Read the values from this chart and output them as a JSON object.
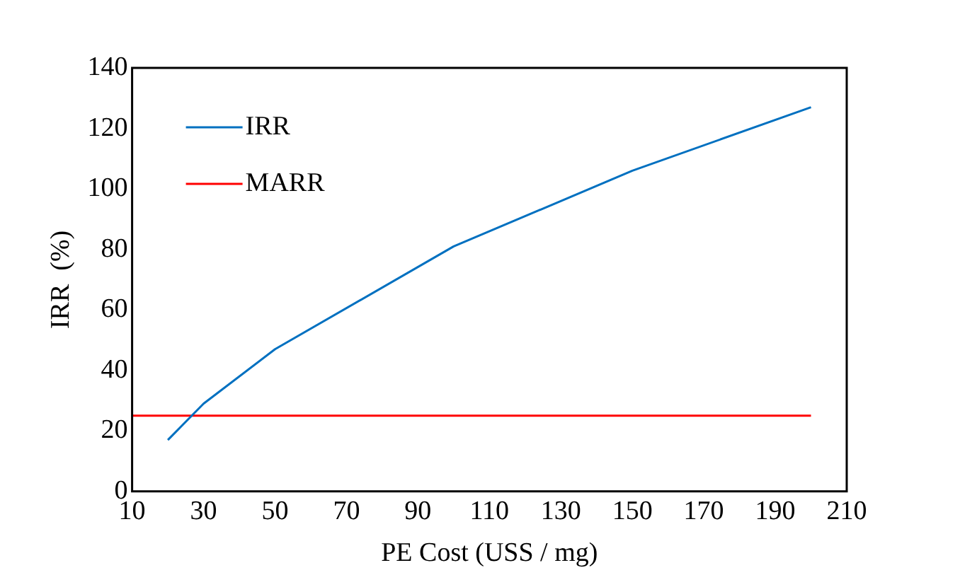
{
  "chart_data": {
    "type": "line",
    "xlabel": "PE Cost (USS / mg)",
    "ylabel": "IRR  (%)",
    "series": [
      {
        "name": "IRR",
        "color": "#0070c0",
        "x": [
          20,
          30,
          50,
          100,
          150,
          200
        ],
        "values": [
          17,
          29,
          47,
          81,
          106,
          127
        ]
      },
      {
        "name": "MARR",
        "color": "#ff0000",
        "x": [
          10,
          200
        ],
        "values": [
          25,
          25
        ]
      }
    ],
    "xlim": [
      10,
      210
    ],
    "xticks": [
      10,
      30,
      50,
      70,
      90,
      110,
      130,
      150,
      170,
      190,
      210
    ],
    "ylim": [
      0,
      140
    ],
    "yticks": [
      0,
      20,
      40,
      60,
      80,
      100,
      120,
      140
    ],
    "grid": false,
    "legend": "top left",
    "marker": "none",
    "line_style": "solid"
  }
}
